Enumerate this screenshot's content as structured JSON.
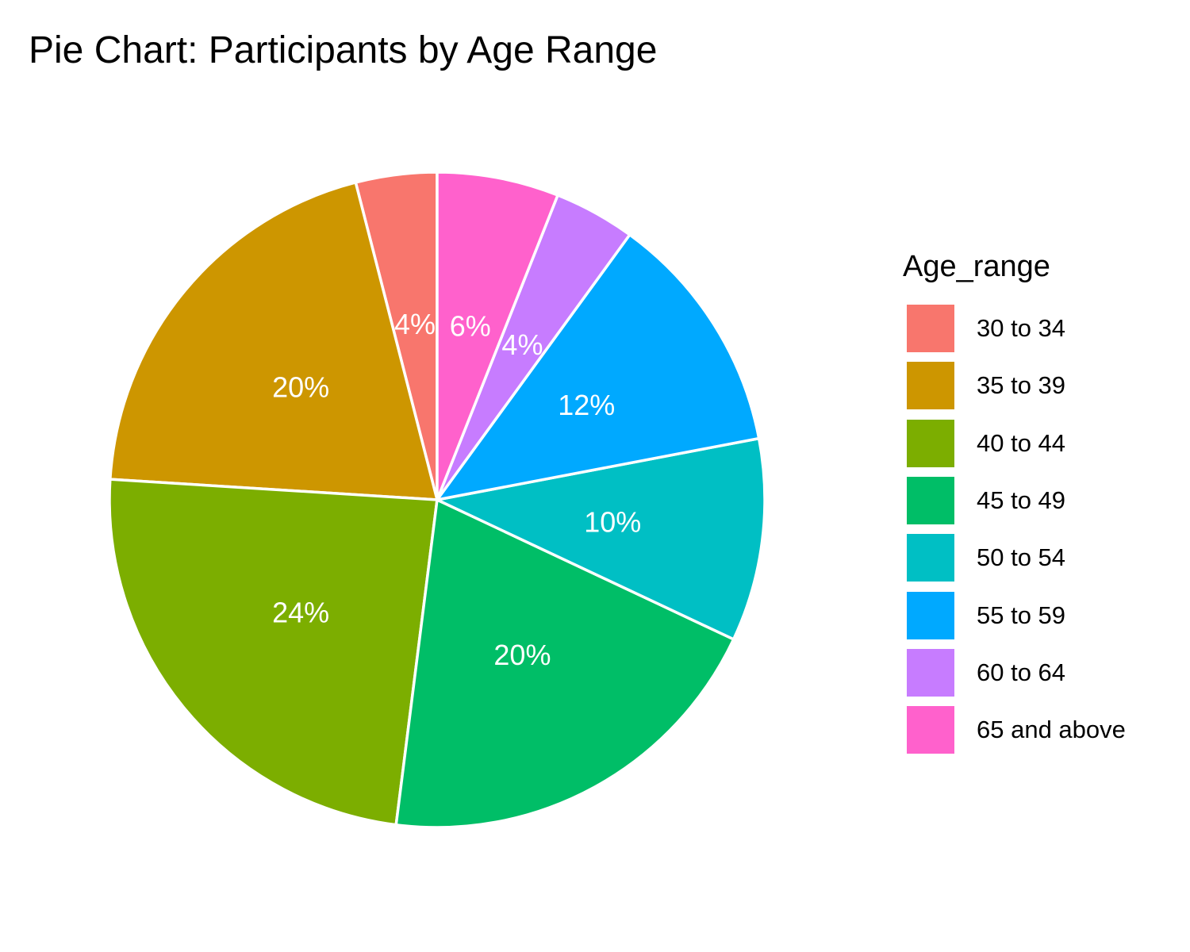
{
  "chart_data": {
    "type": "pie",
    "title": "Pie Chart: Participants by Age Range",
    "legend_title": "Age_range",
    "legend_position": "right",
    "start": "12 o'clock",
    "direction": "counter-clockwise",
    "categories": [
      "30 to 34",
      "35 to 39",
      "40 to 44",
      "45 to 49",
      "50 to 54",
      "55 to 59",
      "60 to 64",
      "65 and above"
    ],
    "values": [
      4,
      20,
      24,
      20,
      10,
      12,
      4,
      6
    ],
    "labels": [
      "4%",
      "20%",
      "24%",
      "20%",
      "10%",
      "12%",
      "4%",
      "6%"
    ],
    "colors": [
      "#F8766D",
      "#CD9600",
      "#7CAE00",
      "#00BE67",
      "#00BFC4",
      "#00A9FF",
      "#C77CFF",
      "#FF61CC"
    ],
    "slice_border_color": "#FFFFFF"
  }
}
